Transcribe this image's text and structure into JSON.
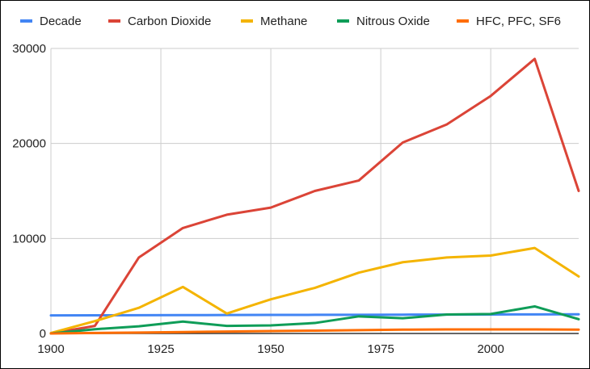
{
  "chart_data": {
    "type": "line",
    "title": "",
    "xlabel": "",
    "ylabel": "",
    "xlim": [
      1900,
      2020
    ],
    "ylim": [
      0,
      30000
    ],
    "x_ticks": [
      "1900",
      "1925",
      "1950",
      "1975",
      "2000"
    ],
    "y_ticks": [
      "0",
      "10000",
      "20000",
      "30000"
    ],
    "grid": true,
    "legend_position": "top",
    "x": [
      1900,
      1910,
      1920,
      1930,
      1940,
      1950,
      1960,
      1970,
      1980,
      1990,
      2000,
      2010,
      2020
    ],
    "series": [
      {
        "name": "Decade",
        "color": "#4285f4",
        "values": [
          1900,
          1910,
          1920,
          1930,
          1940,
          1950,
          1960,
          1970,
          1980,
          1990,
          2000,
          2010,
          2020
        ]
      },
      {
        "name": "Carbon Dioxide",
        "color": "#db4437",
        "values": [
          0,
          800,
          8000,
          11100,
          12500,
          13250,
          15000,
          16100,
          20100,
          22000,
          25000,
          28900,
          15000
        ]
      },
      {
        "name": "Methane",
        "color": "#f4b400",
        "values": [
          50,
          1300,
          2700,
          4900,
          2100,
          3600,
          4800,
          6400,
          7500,
          8000,
          8200,
          9000,
          6000
        ]
      },
      {
        "name": "Nitrous Oxide",
        "color": "#0f9d58",
        "values": [
          0,
          450,
          750,
          1250,
          800,
          850,
          1100,
          1800,
          1600,
          2000,
          2050,
          2850,
          1500
        ]
      },
      {
        "name": "HFC, PFC, SF6",
        "color": "#ff6d01",
        "values": [
          0,
          50,
          100,
          150,
          200,
          250,
          300,
          350,
          400,
          420,
          420,
          420,
          400
        ]
      }
    ]
  }
}
